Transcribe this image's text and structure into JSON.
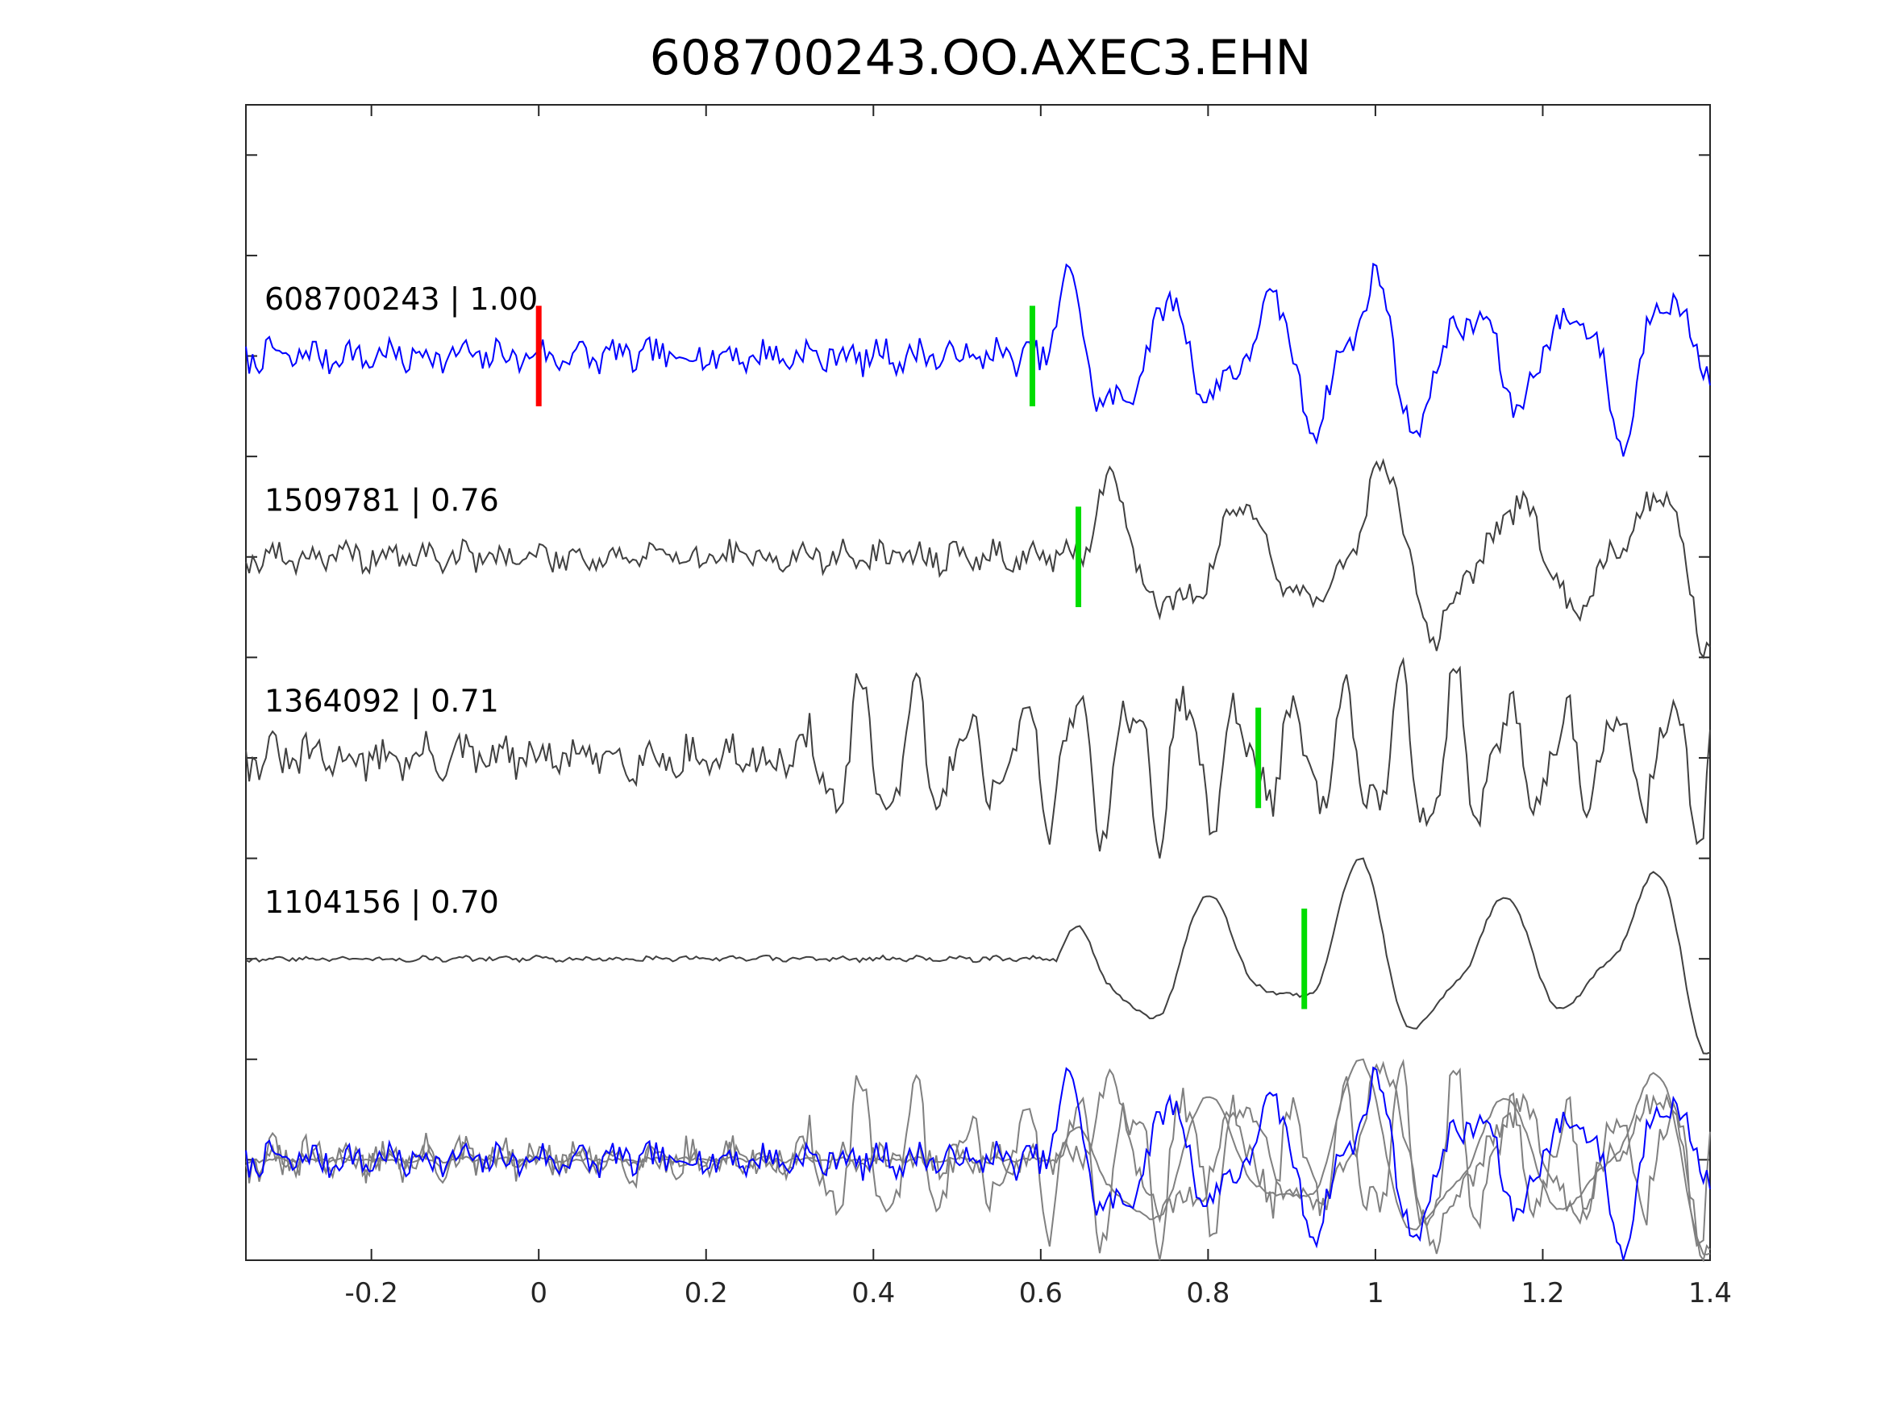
{
  "chart_data": {
    "type": "line",
    "title": "608700243.OO.AXEC3.EHN",
    "xlabel": "",
    "ylabel": "",
    "xlim": [
      -0.35,
      1.4
    ],
    "x_ticks": [
      -0.2,
      0,
      0.2,
      0.4,
      0.6,
      0.8,
      1,
      1.2,
      1.4
    ],
    "x_tick_labels": [
      "-0.2",
      "0",
      "0.2",
      "0.4",
      "0.6",
      "0.8",
      "1",
      "1.2",
      "1.4"
    ],
    "y_axis": "no tick labels; traces stacked with unit spacing, overlay panel at bottom",
    "grid": false,
    "colors": {
      "template": "#0000ff",
      "match": "#404040",
      "overlay_match": "#808080",
      "origin_marker": "#ff0000",
      "pick_marker": "#00dd00",
      "axes": "#262626"
    },
    "origin_marker_x": 0.0,
    "traces": [
      {
        "label": "608700243 | 1.00",
        "event_id": "608700243",
        "correlation": 1.0,
        "role": "template",
        "pick_x": 0.59,
        "waveform": {
          "noise_amplitude": 0.14,
          "onset_x": 0.59,
          "peak_amplitude": 1.0,
          "dominant_frequency": 8.3,
          "seed": 7
        }
      },
      {
        "label": "1509781 | 0.76",
        "event_id": "1509781",
        "correlation": 0.76,
        "role": "match",
        "pick_x": 0.645,
        "waveform": {
          "noise_amplitude": 0.12,
          "onset_x": 0.64,
          "peak_amplitude": 1.0,
          "dominant_frequency": 6.2,
          "seed": 19
        }
      },
      {
        "label": "1364092 | 0.71",
        "event_id": "1364092",
        "correlation": 0.71,
        "role": "match",
        "pick_x": 0.86,
        "waveform": {
          "noise_amplitude": 0.18,
          "onset_x": 0.31,
          "peak_amplitude": 1.0,
          "dominant_frequency": 15.5,
          "seed": 31
        }
      },
      {
        "label": "1104156 | 0.70",
        "event_id": "1104156",
        "correlation": 0.7,
        "role": "match",
        "pick_x": 0.915,
        "waveform": {
          "noise_amplitude": 0.02,
          "onset_x": 0.62,
          "peak_amplitude": 1.0,
          "dominant_frequency": 5.8,
          "seed": 43
        }
      }
    ]
  }
}
